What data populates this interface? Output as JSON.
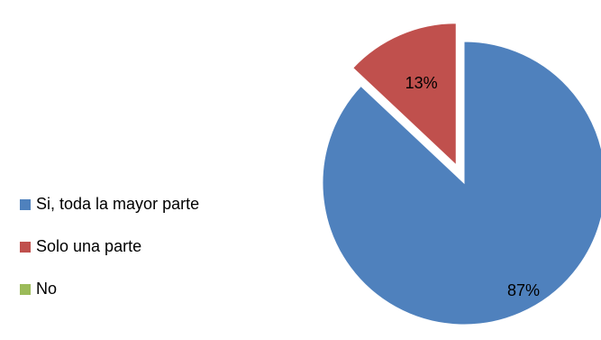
{
  "chart_data": {
    "type": "pie",
    "categories": [
      "Si, toda la mayor parte",
      "Solo una parte",
      "No"
    ],
    "values": [
      87,
      13,
      0
    ],
    "data_labels": [
      "87%",
      "13%",
      ""
    ],
    "colors": [
      "#4F81BD",
      "#C0504D",
      "#9BBB59"
    ],
    "legend_position": "left",
    "exploded_slice": "Solo una parte"
  }
}
